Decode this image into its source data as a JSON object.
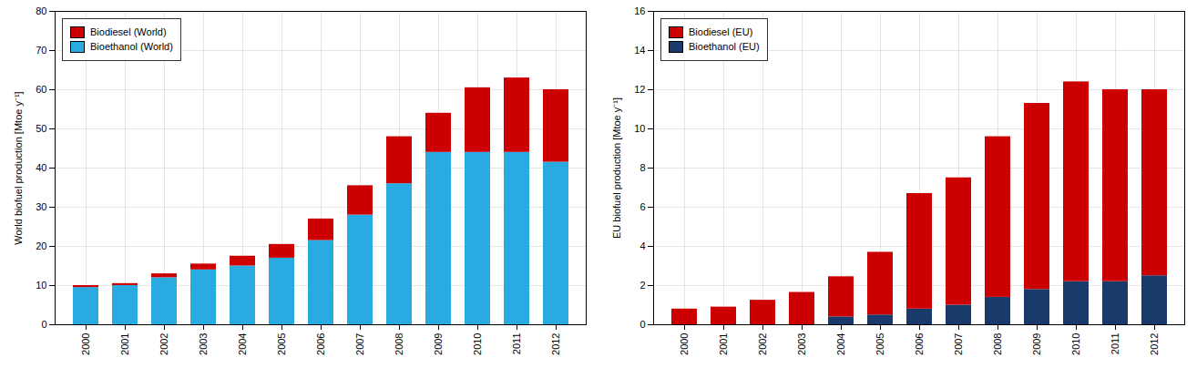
{
  "chart_data": [
    {
      "type": "bar",
      "stacked": true,
      "categories": [
        "2000",
        "2001",
        "2002",
        "2003",
        "2004",
        "2005",
        "2006",
        "2007",
        "2008",
        "2009",
        "2010",
        "2011",
        "2012"
      ],
      "ylabel": "World biofuel production [Mtoe y⁻¹]",
      "ylim": [
        0,
        80
      ],
      "yticks": [
        0,
        10,
        20,
        30,
        40,
        50,
        60,
        70,
        80
      ],
      "grid": true,
      "legend": "upper left",
      "series": [
        {
          "name": "Bioethanol (World)",
          "color": "#29abe2",
          "values": [
            9.5,
            10.0,
            12.0,
            14.0,
            15.0,
            17.0,
            21.5,
            28.0,
            36.0,
            44.0,
            44.0,
            44.0,
            41.5
          ]
        },
        {
          "name": "Biodiesel (World)",
          "color": "#cc0000",
          "values": [
            0.5,
            0.5,
            1.0,
            1.5,
            2.5,
            3.5,
            5.5,
            7.5,
            12.0,
            10.0,
            16.5,
            19.0,
            18.5
          ]
        }
      ]
    },
    {
      "type": "bar",
      "stacked": true,
      "categories": [
        "2000",
        "2001",
        "2002",
        "2003",
        "2004",
        "2005",
        "2006",
        "2007",
        "2008",
        "2009",
        "2010",
        "2011",
        "2012"
      ],
      "ylabel": "EU biofuel production [Mtoe y⁻¹]",
      "ylim": [
        0,
        16
      ],
      "yticks": [
        0,
        2,
        4,
        6,
        8,
        10,
        12,
        14,
        16
      ],
      "grid": true,
      "legend": "upper left",
      "series": [
        {
          "name": "Bioethanol (EU)",
          "color": "#1a3a6b",
          "values": [
            0.0,
            0.0,
            0.0,
            0.0,
            0.4,
            0.5,
            0.8,
            1.0,
            1.4,
            1.8,
            2.2,
            2.2,
            2.5
          ]
        },
        {
          "name": "Biodiesel (EU)",
          "color": "#cc0000",
          "values": [
            0.8,
            0.9,
            1.25,
            1.65,
            2.05,
            3.2,
            5.9,
            6.5,
            8.2,
            9.5,
            10.2,
            9.8,
            9.5
          ]
        }
      ]
    }
  ]
}
